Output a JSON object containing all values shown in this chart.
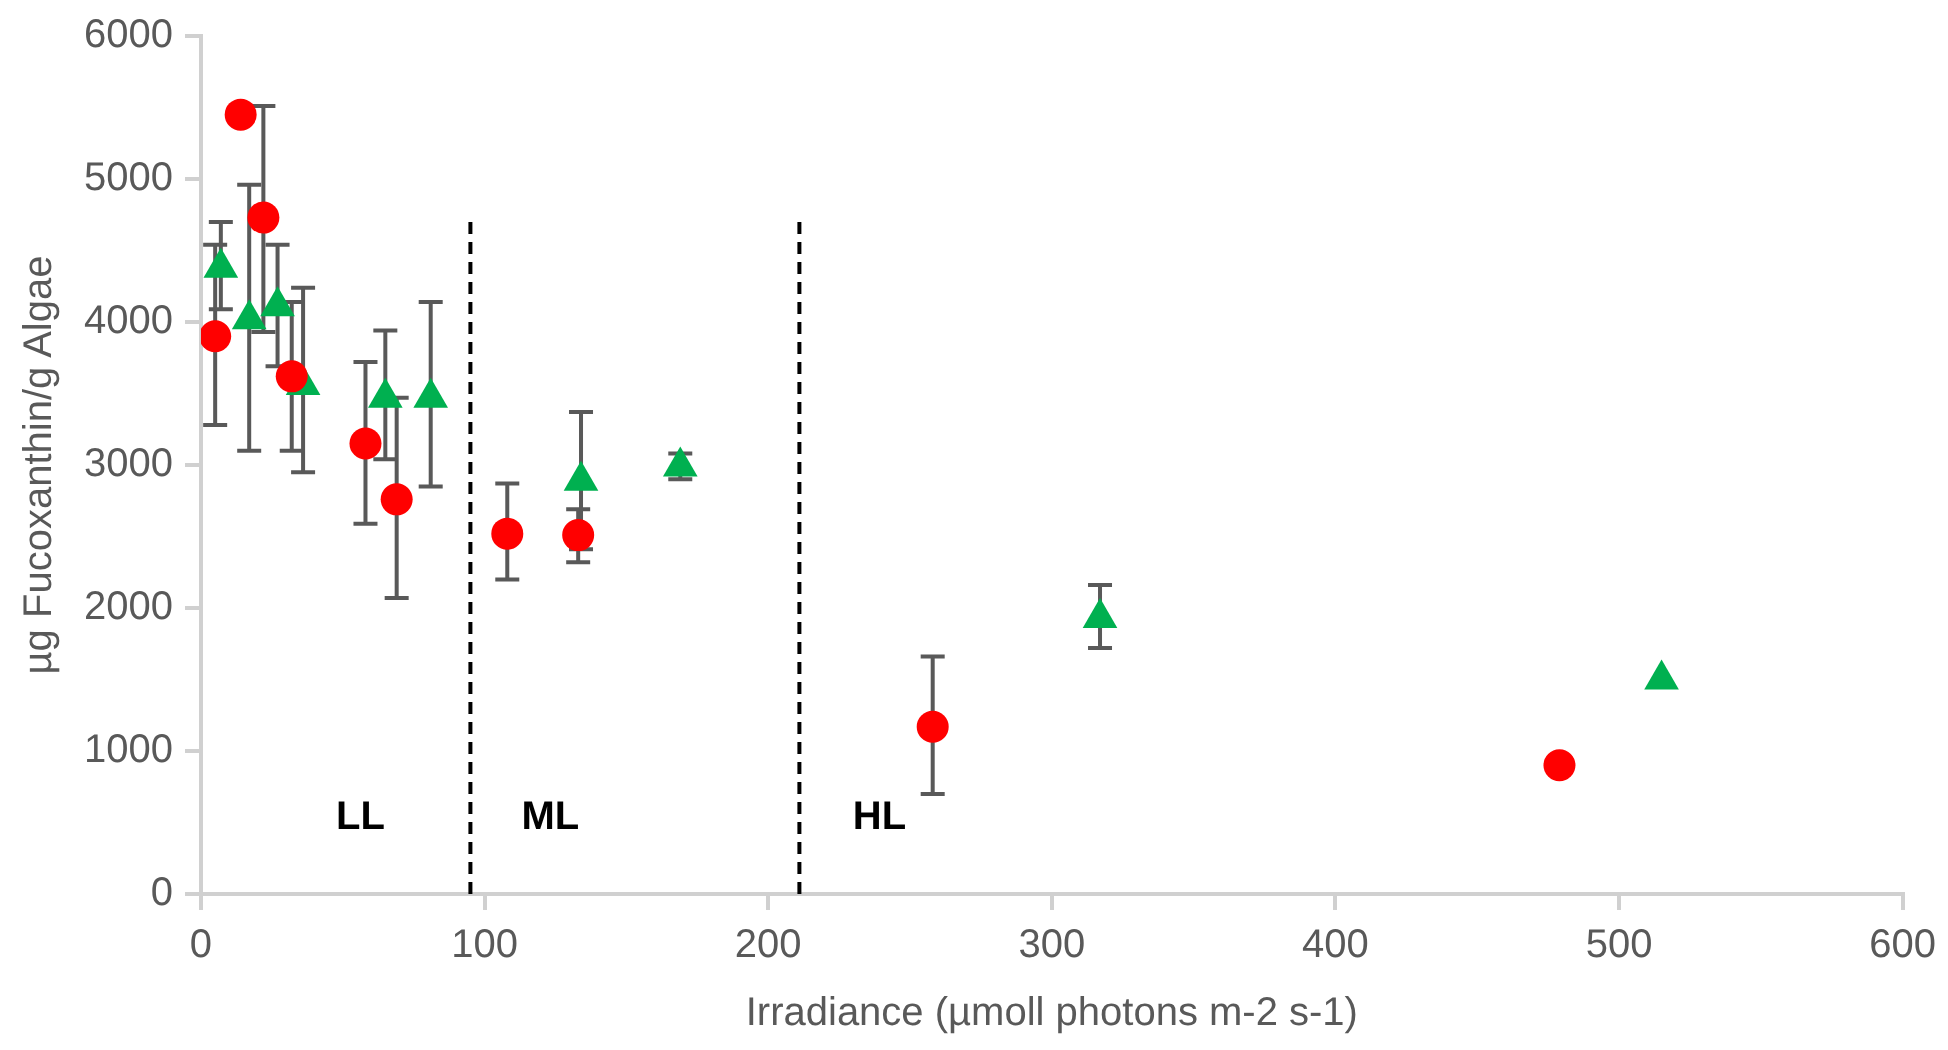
{
  "chart_data": {
    "type": "scatter",
    "xlabel": "Irradiance (µmoll photons m-2 s-1)",
    "ylabel": "µg Fucoxanthin/g Algae",
    "xlim": [
      0,
      600
    ],
    "xticks": [
      0,
      100,
      200,
      300,
      400,
      500,
      600
    ],
    "ylim": [
      0,
      6000
    ],
    "yticks": [
      0,
      1000,
      2000,
      3000,
      4000,
      5000,
      6000
    ],
    "grid": false,
    "legend": false,
    "series": [
      {
        "color": "#ff0000",
        "marker": "circle",
        "x": [
          5,
          14,
          22,
          32,
          58,
          69,
          108,
          133,
          258,
          479
        ],
        "values": [
          3900,
          5450,
          4730,
          3620,
          3150,
          2760,
          2520,
          2510,
          1170,
          900
        ],
        "errors": [
          [
            3280,
            4540
          ],
          null,
          [
            3930,
            5510
          ],
          [
            3100,
            4140
          ],
          [
            2590,
            3720
          ],
          [
            2070,
            3470
          ],
          [
            2200,
            2870
          ],
          [
            2320,
            2690
          ],
          [
            700,
            1660
          ],
          null
        ]
      },
      {
        "color": "#00b050",
        "marker": "triangle",
        "x": [
          7,
          17,
          27,
          36,
          65,
          81,
          134,
          169,
          317,
          515
        ],
        "values": [
          4380,
          4020,
          4110,
          3560,
          3470,
          3470,
          2890,
          2990,
          1930,
          1500
        ],
        "errors": [
          [
            4090,
            4700
          ],
          [
            3100,
            4960
          ],
          [
            3690,
            4540
          ],
          [
            2950,
            4240
          ],
          [
            3040,
            3940
          ],
          [
            2850,
            4140
          ],
          [
            2410,
            3370
          ],
          [
            2900,
            3080
          ],
          [
            1720,
            2160
          ],
          null
        ]
      }
    ],
    "ref_lines": [
      {
        "axis": "x",
        "value": 95,
        "color": "#000000",
        "line_style": "dashed"
      },
      {
        "axis": "x",
        "value": 211,
        "color": "#000000",
        "line_style": "dashed"
      }
    ],
    "annotations": [
      "LL",
      "ML",
      "HL"
    ]
  }
}
